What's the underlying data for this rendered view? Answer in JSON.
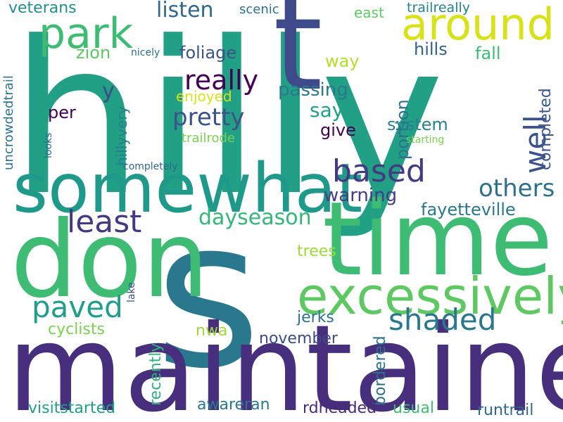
{
  "words": [
    {
      "text": "hilly",
      "color": "#21a085",
      "rotate": false
    },
    {
      "text": "s",
      "color": "#2a788e",
      "rotate": false
    },
    {
      "text": "maintained",
      "color": "#472f7d",
      "rotate": false
    },
    {
      "text": "time",
      "color": "#3fbc73",
      "rotate": false
    },
    {
      "text": "t",
      "color": "#3e4a89",
      "rotate": false
    },
    {
      "text": "don",
      "color": "#3fbc73",
      "rotate": false
    },
    {
      "text": "somewhat",
      "color": "#1f9a8a",
      "rotate": false
    },
    {
      "text": "excessively",
      "color": "#5ec962",
      "rotate": false
    },
    {
      "text": "around",
      "color": "#d8e219",
      "rotate": false
    },
    {
      "text": "park",
      "color": "#3fbc73",
      "rotate": false
    },
    {
      "text": "based",
      "color": "#443983",
      "rotate": false
    },
    {
      "text": "least",
      "color": "#443983",
      "rotate": false
    },
    {
      "text": "shaded",
      "color": "#2a788e",
      "rotate": false
    },
    {
      "text": "paved",
      "color": "#1f9e89",
      "rotate": false
    },
    {
      "text": "well",
      "color": "#3b528b",
      "rotate": true
    },
    {
      "text": "others",
      "color": "#2c728e",
      "rotate": false
    },
    {
      "text": "really",
      "color": "#440154",
      "rotate": false
    },
    {
      "text": "pretty",
      "color": "#3b528b",
      "rotate": false
    },
    {
      "text": "listen",
      "color": "#31688e",
      "rotate": false
    },
    {
      "text": "dayseason",
      "color": "#35b779",
      "rotate": false
    },
    {
      "text": "y",
      "color": "#3e4a89",
      "rotate": false
    },
    {
      "text": "fayetteville",
      "color": "#2a788e",
      "rotate": false
    },
    {
      "text": "warning",
      "color": "#433e85",
      "rotate": false
    },
    {
      "text": "say",
      "color": "#1fa188",
      "rotate": false
    },
    {
      "text": "passing",
      "color": "#2a788e",
      "rotate": false
    },
    {
      "text": "system",
      "color": "#26818e",
      "rotate": false
    },
    {
      "text": "hills",
      "color": "#33638d",
      "rotate": false
    },
    {
      "text": "foliage",
      "color": "#3b528b",
      "rotate": false
    },
    {
      "text": "way",
      "color": "#b5de2b",
      "rotate": false
    },
    {
      "text": "fall",
      "color": "#3fbc73",
      "rotate": false
    },
    {
      "text": "completed",
      "color": "#39568c",
      "rotate": true
    },
    {
      "text": "portion",
      "color": "#2c728e",
      "rotate": true
    },
    {
      "text": "give",
      "color": "#440154",
      "rotate": false
    },
    {
      "text": "veterans",
      "color": "#21908d",
      "rotate": false
    },
    {
      "text": "zion",
      "color": "#5ec962",
      "rotate": false
    },
    {
      "text": "per",
      "color": "#440154",
      "rotate": false
    },
    {
      "text": "enjoyed",
      "color": "#d8e219",
      "rotate": false
    },
    {
      "text": "hillyvery",
      "color": "#287d8e",
      "rotate": true
    },
    {
      "text": "uncrowdedtrail",
      "color": "#2c728e",
      "rotate": true
    },
    {
      "text": "trailrode",
      "color": "#7ad151",
      "rotate": false
    },
    {
      "text": "scenic",
      "color": "#2c728e",
      "rotate": false
    },
    {
      "text": "east",
      "color": "#5ec962",
      "rotate": false
    },
    {
      "text": "trailreally",
      "color": "#26828e",
      "rotate": false
    },
    {
      "text": "nicely",
      "color": "#2d708e",
      "rotate": false
    },
    {
      "text": "jerks",
      "color": "#2c728e",
      "rotate": false
    },
    {
      "text": "november",
      "color": "#3e4a89",
      "rotate": false
    },
    {
      "text": "cyclists",
      "color": "#7ad151",
      "rotate": false
    },
    {
      "text": "trees",
      "color": "#a0da39",
      "rotate": false
    },
    {
      "text": "recently",
      "color": "#2db27d",
      "rotate": true
    },
    {
      "text": "nwa",
      "color": "#a0da39",
      "rotate": false
    },
    {
      "text": "bordered",
      "color": "#2c728e",
      "rotate": true
    },
    {
      "text": "visitstarted",
      "color": "#1fa188",
      "rotate": false
    },
    {
      "text": "awareran",
      "color": "#2a788e",
      "rotate": false
    },
    {
      "text": "rdheaded",
      "color": "#472a7a",
      "rotate": false
    },
    {
      "text": "usual",
      "color": "#3fbc73",
      "rotate": false
    },
    {
      "text": "runtrail",
      "color": "#31688e",
      "rotate": false
    },
    {
      "text": "completely",
      "color": "#31688e",
      "rotate": false
    },
    {
      "text": "starting",
      "color": "#7ad151",
      "rotate": false
    },
    {
      "text": "looks",
      "color": "#31688e",
      "rotate": true
    },
    {
      "text": "lake",
      "color": "#39568c",
      "rotate": true
    }
  ]
}
